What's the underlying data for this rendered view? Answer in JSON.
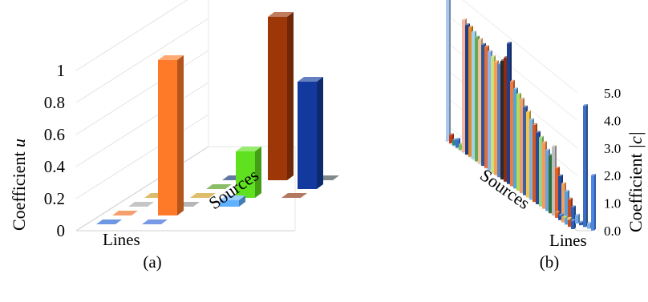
{
  "chart_data": [
    {
      "type": "bar",
      "panel_label": "(a)",
      "view": "3d",
      "zlabel": "Coefficient u",
      "zlabel_text": "Coefficient ",
      "zlabel_var": "u",
      "zticks": [
        "0",
        "0.2",
        "0.4",
        "0.6",
        "0.8",
        "1"
      ],
      "zlim": [
        0,
        1
      ],
      "xlabel": "Lines",
      "ylabel": "Sources",
      "grid": true,
      "bars": [
        {
          "line": 1,
          "source": 1,
          "value": 0.0,
          "color": "#1f5fd4"
        },
        {
          "line": 1,
          "source": 2,
          "value": 0.0,
          "color": "#ef6c20"
        },
        {
          "line": 1,
          "source": 3,
          "value": 0.0,
          "color": "#a8a8a8"
        },
        {
          "line": 1,
          "source": 4,
          "value": 0.0,
          "color": "#c9981c"
        },
        {
          "line": 2,
          "source": 1,
          "value": 0.0,
          "color": "#2d62d8"
        },
        {
          "line": 2,
          "source": 2,
          "value": 0.97,
          "color": "#ff7a28"
        },
        {
          "line": 2,
          "source": 3,
          "value": 0.0,
          "color": "#8f8f8f"
        },
        {
          "line": 2,
          "source": 4,
          "value": 0.0,
          "color": "#cf9a1a"
        },
        {
          "line": 2,
          "source": 5,
          "value": 0.0,
          "color": "#4e9b1a"
        },
        {
          "line": 2,
          "source": 6,
          "value": 0.0,
          "color": "#0f2d75"
        },
        {
          "line": 3,
          "source": 3,
          "value": 0.04,
          "color": "#5fb2ff"
        },
        {
          "line": 3,
          "source": 4,
          "value": 0.29,
          "color": "#5fe11f"
        },
        {
          "line": 3,
          "source": 6,
          "value": 1.02,
          "color": "#9e3708"
        },
        {
          "line": 4,
          "source": 4,
          "value": 0.0,
          "color": "#8c2e0a"
        },
        {
          "line": 4,
          "source": 5,
          "value": 0.67,
          "color": "#123a9e"
        },
        {
          "line": 4,
          "source": 6,
          "value": 0.0,
          "color": "#3c4a4a"
        }
      ]
    },
    {
      "type": "bar",
      "panel_label": "(b)",
      "view": "3d",
      "zlabel": "Coefficient |c|",
      "zlabel_text": "Coefficient ",
      "zlabel_var": "|c|",
      "zticks": [
        "0.0",
        "1.0",
        "2.0",
        "3.0",
        "4.0",
        "5.0"
      ],
      "zlim": [
        0,
        5
      ],
      "xlabel": "Lines",
      "ylabel": "Sources",
      "grid": true,
      "sources_values": [
        5.8,
        0.3,
        0.2,
        0.3,
        0.2,
        4.8,
        4.7,
        4.7,
        4.6,
        4.5,
        4.5,
        4.4,
        4.4,
        4.3,
        4.2,
        4.1,
        4.1,
        4.3,
        4.5,
        5.1,
        3.8,
        3.6,
        3.5,
        3.4,
        3.2,
        3.1,
        2.9,
        2.8,
        2.6,
        2.5,
        2.4,
        2.2,
        2.1,
        2.5,
        1.8,
        1.6,
        1.4,
        1.2,
        1.0,
        0.8
      ],
      "source_colors": [
        "#a7c7ee",
        "#c23b1a",
        "#2a8a8a",
        "#3a6fd0",
        "#7ac24a",
        "#f4b6a0",
        "#1e3e86",
        "#e58a2d",
        "#9fd3f0",
        "#6aa84f",
        "#f0c39a",
        "#2f5597",
        "#e06c3c",
        "#8fb4e8",
        "#c9e37a",
        "#f6a04d",
        "#5d7fc2",
        "#2b2b2b",
        "#8e2c0f",
        "#1d3f8f",
        "#f07b3f",
        "#4fa5d8",
        "#b6d957",
        "#e8a070",
        "#3b5fa8",
        "#f2c64c",
        "#7fb0e0",
        "#d05a20",
        "#2a4a9a",
        "#9bd67c",
        "#f59a5c",
        "#6fa3db",
        "#2e6f3e",
        "#bdbdbd",
        "#e85f1f",
        "#1f4fa5",
        "#f3a15e",
        "#5aa0e0",
        "#c74b1a",
        "#2c5fb8"
      ],
      "lines_values": [
        0.08,
        0.05,
        0.03,
        0.05,
        0.04,
        0.3,
        0.1,
        4.4,
        0.2,
        2.0
      ],
      "line_colors": [
        "#e36c2b",
        "#2a6fd6",
        "#9ad14c",
        "#f2b84a",
        "#3f74d6",
        "#6fa8e8",
        "#2d5fbf",
        "#3d6fc4",
        "#7fb0e8",
        "#4a86e8"
      ]
    }
  ]
}
